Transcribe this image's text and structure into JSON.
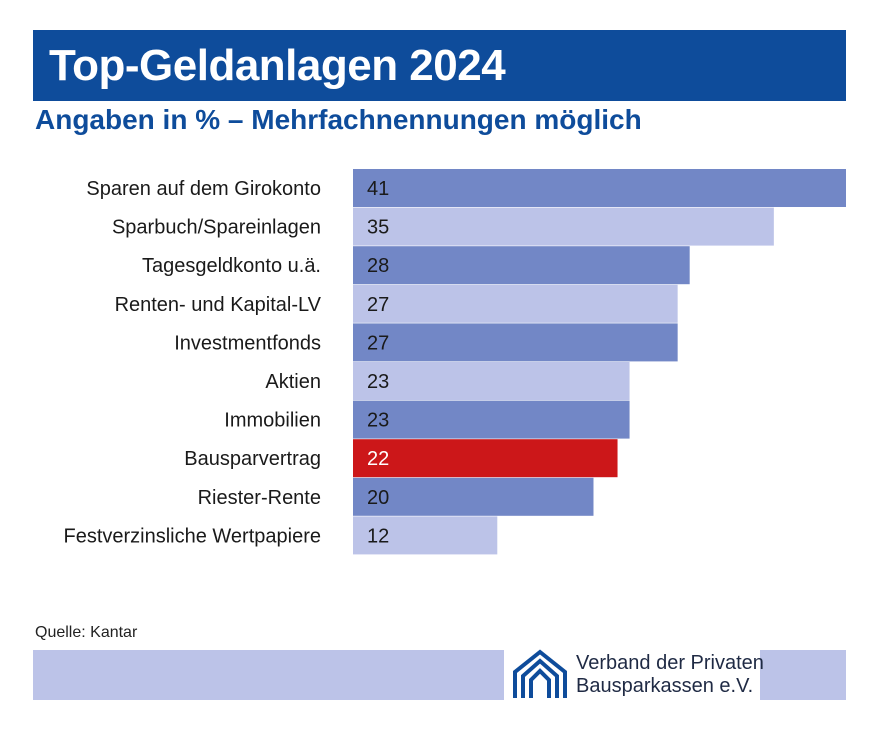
{
  "header": {
    "title": "Top-Geldanlagen 2024",
    "subtitle": "Angaben in % – Mehrfachnennungen möglich"
  },
  "colors": {
    "title_bg": "#0e4c9b",
    "bar_dark": "#7287c6",
    "bar_light": "#bcc3e8",
    "highlight": "#cc1719",
    "footer_bg": "#bcc3e8"
  },
  "chart_data": {
    "type": "bar",
    "orientation": "horizontal",
    "title": "Top-Geldanlagen 2024",
    "subtitle": "Angaben in % – Mehrfachnennungen möglich",
    "xlabel": "",
    "ylabel": "",
    "xlim": [
      0,
      41
    ],
    "grid": false,
    "categories": [
      "Sparen auf dem Girokonto",
      "Sparbuch/Spareinlagen",
      "Tagesgeldkonto u.ä.",
      "Renten- und Kapital-LV",
      "Investmentfonds",
      "Aktien",
      "Immobilien",
      "Bausparvertrag",
      "Riester-Rente",
      "Festverzinsliche Wertpapiere"
    ],
    "values": [
      41,
      35,
      28,
      27,
      27,
      23,
      23,
      22,
      20,
      12
    ],
    "highlight_category": "Bausparvertrag",
    "value_labels": true
  },
  "footer": {
    "source": "Quelle: Kantar",
    "org_line1": "Verband der Privaten",
    "org_line2": "Bausparkassen e.V."
  }
}
